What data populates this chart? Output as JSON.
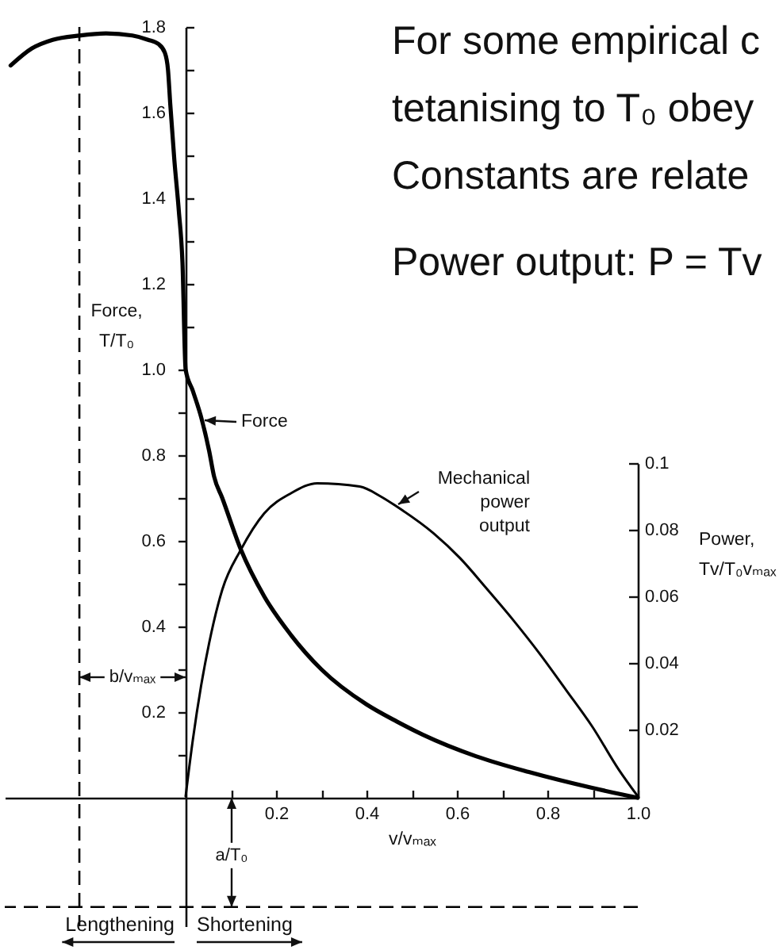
{
  "chart_data": {
    "type": "line",
    "xlabel": "v/vₘₐₓ",
    "ylabel": "Force, T/T₀",
    "y2label": "Power, Tv/T₀vₘₐₓ",
    "xlim": [
      -0.4,
      1
    ],
    "ylim": [
      -0.3,
      1.8
    ],
    "y2lim": [
      -0.039,
      0.231
    ],
    "xticks": [
      {
        "value": 0.1,
        "label": null
      },
      0.2,
      {
        "value": 0.3,
        "label": null
      },
      0.4,
      {
        "value": 0.5,
        "label": null
      },
      0.6,
      {
        "value": 0.7,
        "label": null
      },
      0.8,
      {
        "value": 0.9,
        "label": null
      },
      {
        "value": 1,
        "label": "1.0"
      }
    ],
    "yticks": [
      {
        "value": 0.1,
        "label": null
      },
      0.2,
      {
        "value": 0.3,
        "label": null
      },
      0.4,
      {
        "value": 0.5,
        "label": null
      },
      0.6,
      {
        "value": 0.7,
        "label": null
      },
      0.8,
      {
        "value": 0.9,
        "label": null
      },
      {
        "value": 1,
        "label": "1.0"
      },
      {
        "value": 1.1,
        "label": null
      },
      1.2,
      {
        "value": 1.3,
        "label": null
      },
      1.4,
      {
        "value": 1.5,
        "label": null
      },
      1.6,
      {
        "value": 1.7,
        "label": null
      },
      1.8
    ],
    "y2ticks": [
      0.02,
      0.04,
      0.06,
      0.08,
      0.1
    ],
    "series": [
      {
        "name": "Force",
        "color": "#000000",
        "x": [
          -0.387,
          -0.34,
          -0.294,
          -0.235,
          -0.176,
          -0.118,
          -0.083,
          -0.06,
          -0.046,
          -0.039,
          -0.034,
          -0.025,
          -0.015,
          -0.007,
          0,
          0.016,
          0.034,
          0.052,
          0.063,
          0.081,
          0.122,
          0.174,
          0.233,
          0.3,
          0.4,
          0.467,
          0.525,
          0.642,
          0.759,
          0.899,
          1
        ],
        "values": [
          1.71,
          1.75,
          1.77,
          1.78,
          1.785,
          1.78,
          1.77,
          1.76,
          1.74,
          1.7,
          1.62,
          1.49,
          1.37,
          1.25,
          1,
          0.95,
          0.89,
          0.81,
          0.75,
          0.7,
          0.58,
          0.47,
          0.38,
          0.3,
          0.218,
          0.178,
          0.147,
          0.097,
          0.06,
          0.023,
          0
        ]
      },
      {
        "name": "Mechanical power output",
        "color": "#000000",
        "axis": "y2",
        "x": [
          0,
          0.016,
          0.034,
          0.052,
          0.081,
          0.122,
          0.174,
          0.233,
          0.291,
          0.385,
          0.432,
          0.467,
          0.548,
          0.607,
          0.665,
          0.724,
          0.782,
          0.841,
          0.899,
          0.958,
          1
        ],
        "values": [
          0,
          0.017,
          0.033,
          0.046,
          0.062,
          0.074,
          0.085,
          0.091,
          0.094,
          0.093,
          0.09,
          0.087,
          0.079,
          0.0715,
          0.0625,
          0.053,
          0.043,
          0.032,
          0.021,
          0.008,
          0
        ]
      }
    ],
    "ref_lines": [
      {
        "axis": "x",
        "value": -0.235,
        "label": "b/vₘₐₓ",
        "line_style": "dashed",
        "color": "#000000"
      },
      {
        "axis": "y",
        "value": -0.255,
        "label": "a/T₀",
        "line_style": "dashed",
        "color": "#000000"
      }
    ],
    "annotations": [
      "For some empirical c",
      "tetanising to T₀ obey",
      "Constants are relate",
      "Power output: P = Tv",
      "Lengthening",
      "Shortening"
    ]
  }
}
